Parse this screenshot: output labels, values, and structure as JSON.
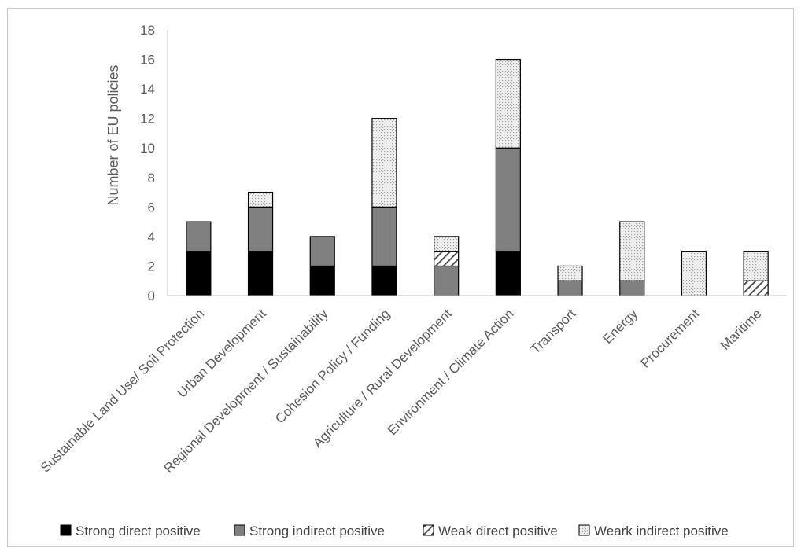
{
  "chart_data": {
    "type": "bar",
    "stacked": true,
    "title": "",
    "xlabel": "",
    "ylabel": "Number of EU policies",
    "ylim": [
      0,
      18
    ],
    "yticks": [
      0,
      2,
      4,
      6,
      8,
      10,
      12,
      14,
      16,
      18
    ],
    "grid": false,
    "legend_position": "bottom",
    "categories": [
      "Sustainable Land Use/ Soil Protection",
      "Urban Development",
      "Regional Development / Sustainability",
      "Cohesion Policy / Funding",
      "Agriculture / Rural Development",
      "Environment / Climate Action",
      "Transport",
      "Energy",
      "Procurement",
      "Maritime"
    ],
    "series": [
      {
        "name": "Strong direct positive",
        "color": "#000000",
        "pattern": "solid",
        "values": [
          3,
          3,
          2,
          2,
          0,
          3,
          0,
          0,
          0,
          0
        ]
      },
      {
        "name": "Strong indirect positive",
        "color": "#808080",
        "pattern": "solid",
        "values": [
          2,
          3,
          2,
          4,
          2,
          7,
          1,
          1,
          0,
          0
        ]
      },
      {
        "name": "Weak direct positive",
        "color": "#ffffff",
        "pattern": "diagonal",
        "values": [
          0,
          0,
          0,
          0,
          1,
          0,
          0,
          0,
          0,
          1
        ]
      },
      {
        "name": "Weark indirect positive",
        "color": "#e6e6e6",
        "pattern": "dots",
        "values": [
          0,
          1,
          0,
          6,
          1,
          6,
          1,
          4,
          3,
          2
        ]
      }
    ]
  }
}
